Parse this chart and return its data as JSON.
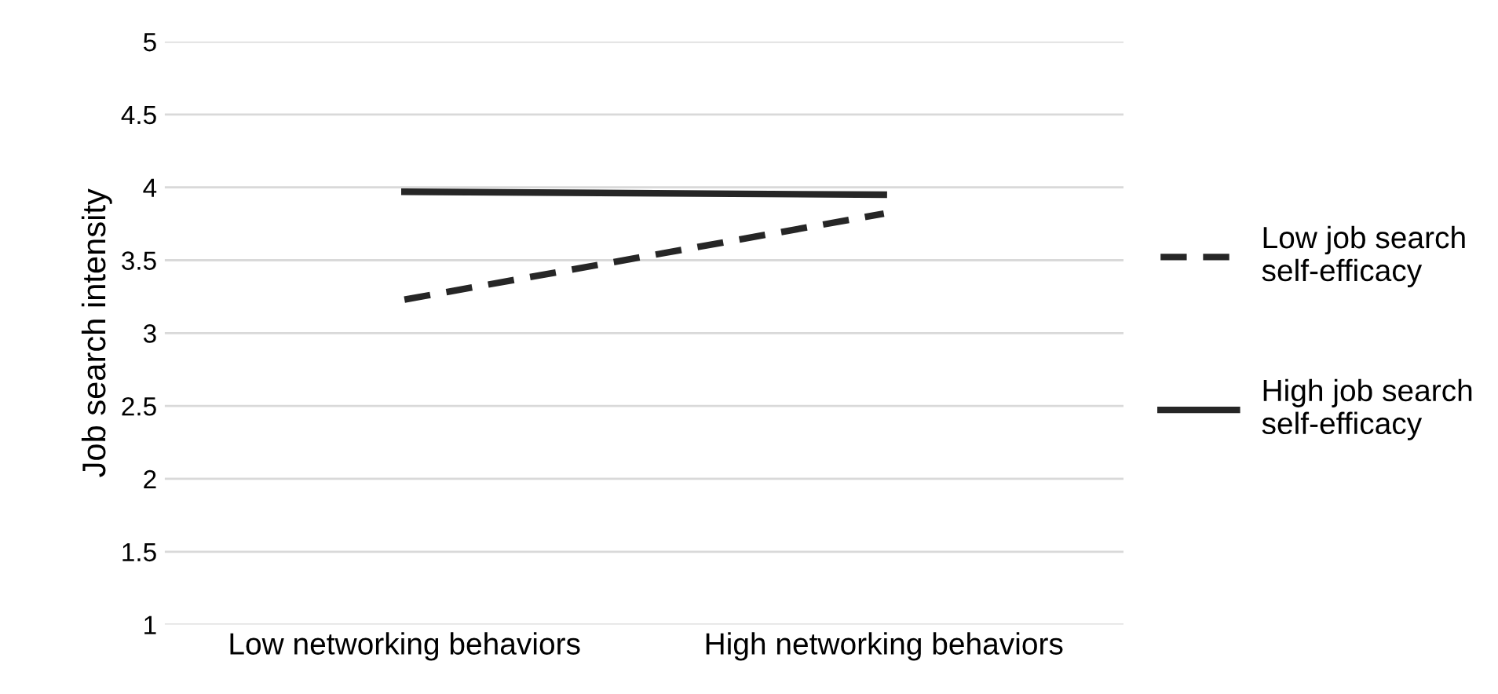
{
  "chart_data": {
    "type": "line",
    "ylabel": "Job search intensity",
    "categories": [
      "Low networking behaviors",
      "High networking behaviors"
    ],
    "series": [
      {
        "name": "Low job search self-efficacy",
        "color": "#262626",
        "values": [
          3.23,
          3.82
        ],
        "line_style": "dashed"
      },
      {
        "name": "High job search self-efficacy",
        "color": "#262626",
        "values": [
          3.97,
          3.95
        ],
        "line_style": "solid"
      }
    ],
    "ylim": [
      1,
      5
    ],
    "yticks": [
      1,
      1.5,
      2,
      2.5,
      3,
      3.5,
      4,
      4.5,
      5
    ],
    "grid": "y",
    "legend": "right",
    "marker": "none"
  }
}
